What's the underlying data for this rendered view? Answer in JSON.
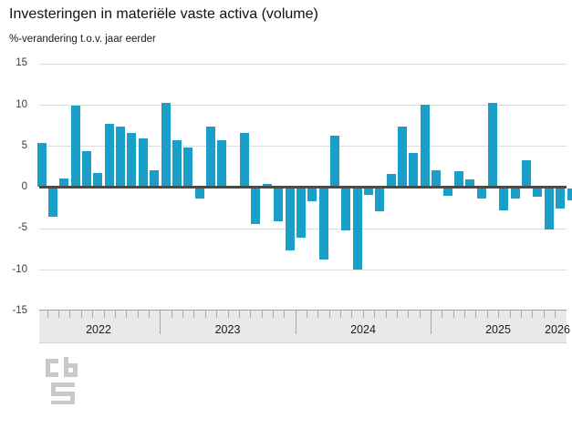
{
  "header": {
    "title": "Investeringen in materiële vaste activa (volume)",
    "subtitle": "%-verandering t.o.v. jaar eerder"
  },
  "y_axis": {
    "ticks": [
      15,
      10,
      5,
      0,
      -5,
      -10,
      -15
    ]
  },
  "x_axis": {
    "years": [
      "2022",
      "2023",
      "2024",
      "2025",
      "2026"
    ]
  },
  "logo_name": "cbs-logo",
  "chart_data": {
    "type": "bar",
    "title": "Investeringen in materiële vaste activa (volume)",
    "ylabel": "%-verandering t.o.v. jaar eerder",
    "ylim": [
      -15,
      15
    ],
    "grid": true,
    "bar_color": "#1aa0c8",
    "x": [
      "2022-02",
      "2022-03",
      "2022-04",
      "2022-05",
      "2022-06",
      "2022-07",
      "2022-08",
      "2022-09",
      "2022-10",
      "2022-11",
      "2022-12",
      "2023-01",
      "2023-02",
      "2023-03",
      "2023-04",
      "2023-05",
      "2023-06",
      "2023-07",
      "2023-08",
      "2023-09",
      "2023-10",
      "2023-11",
      "2023-12",
      "2024-01",
      "2024-02",
      "2024-03",
      "2024-04",
      "2024-05",
      "2024-06",
      "2024-07",
      "2024-08",
      "2024-09",
      "2024-10",
      "2024-11",
      "2024-12",
      "2025-01",
      "2025-02",
      "2025-03",
      "2025-04",
      "2025-05",
      "2025-06",
      "2025-07",
      "2025-08",
      "2025-09",
      "2025-10",
      "2025-11",
      "2025-12",
      "2026-01"
    ],
    "values": [
      5.4,
      -3.4,
      1.0,
      9.9,
      4.4,
      1.7,
      7.7,
      7.4,
      6.6,
      5.9,
      2.0,
      10.2,
      5.7,
      4.8,
      -1.2,
      7.4,
      5.7,
      0.0,
      6.6,
      -4.3,
      0.4,
      -4.0,
      -7.5,
      -6.0,
      -1.5,
      -8.6,
      6.2,
      -5.1,
      -9.8,
      -0.8,
      -2.8,
      1.6,
      7.4,
      4.2,
      10.0,
      2.0,
      -0.9,
      1.9,
      0.9,
      -1.2,
      10.2,
      -2.6,
      -1.2,
      3.3,
      -1.0,
      -5.0,
      -2.4,
      -1.4
    ],
    "xtick_labels": [
      "2022",
      "2023",
      "2024",
      "2025",
      "2026"
    ]
  }
}
